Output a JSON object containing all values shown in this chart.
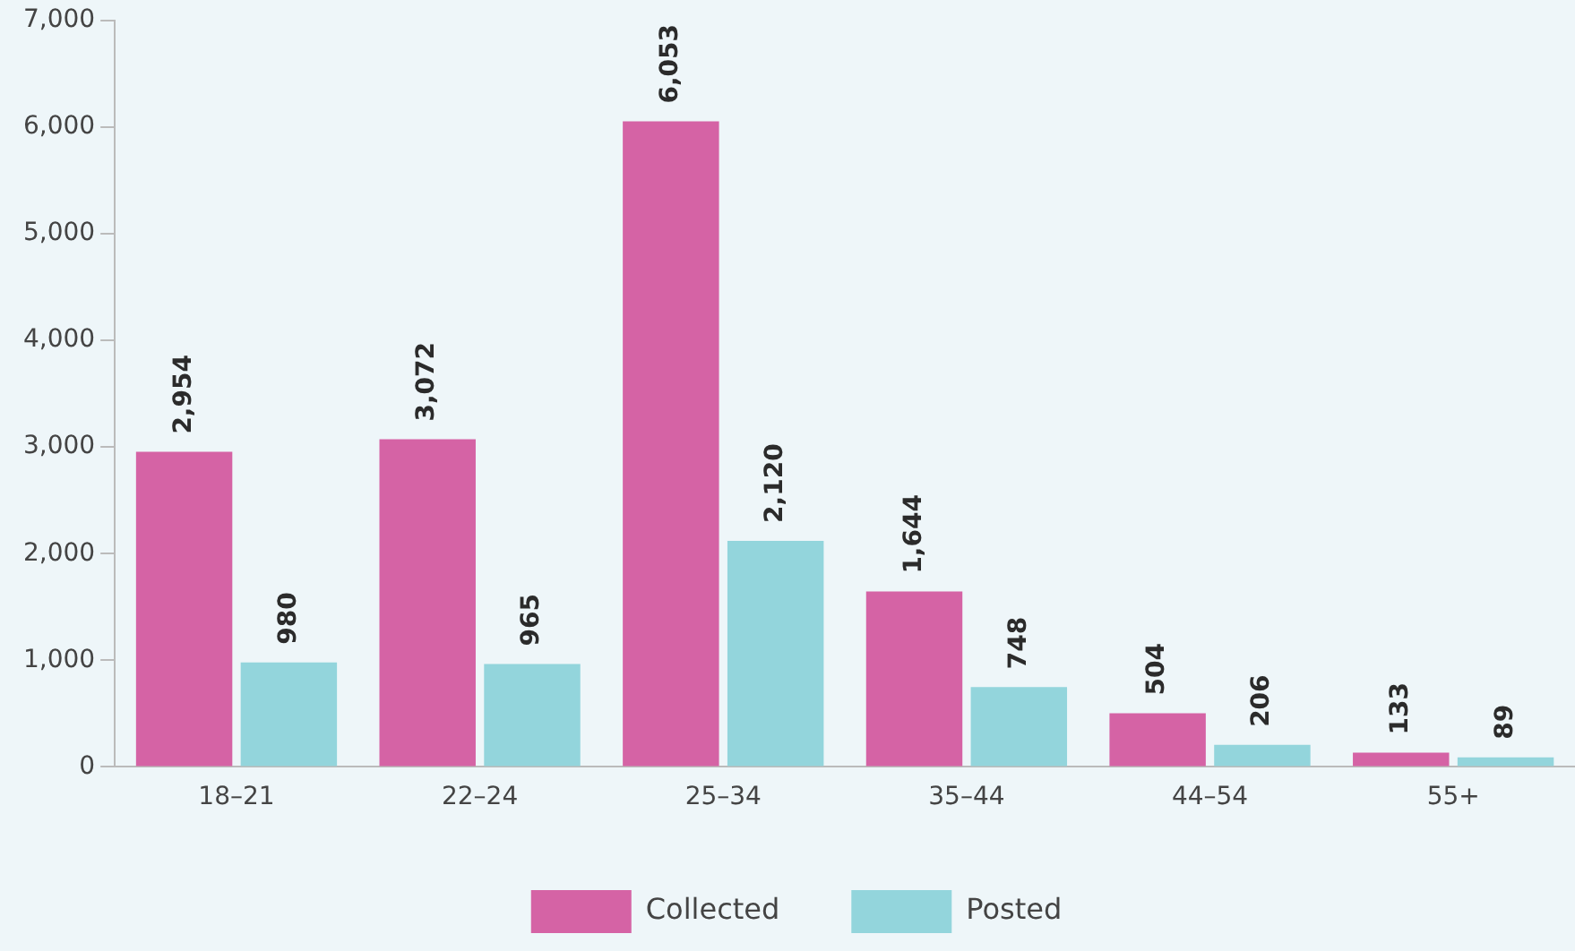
{
  "chart_data": {
    "type": "bar",
    "categories": [
      "18–21",
      "22–24",
      "25–34",
      "35–44",
      "44–54",
      "55+"
    ],
    "series": [
      {
        "name": "Collected",
        "color": "#d563a5",
        "values": [
          2954,
          3072,
          6053,
          1644,
          504,
          133
        ],
        "value_labels": [
          "2,954",
          "3,072",
          "6,053",
          "1,644",
          "504",
          "133"
        ]
      },
      {
        "name": "Posted",
        "color": "#93d5dc",
        "values": [
          980,
          965,
          2120,
          748,
          206,
          89
        ],
        "value_labels": [
          "980",
          "965",
          "2,120",
          "748",
          "206",
          "89"
        ]
      }
    ],
    "ylim": [
      0,
      7000
    ],
    "yticks": [
      {
        "value": 0,
        "label": "0"
      },
      {
        "value": 1000,
        "label": "1,000"
      },
      {
        "value": 2000,
        "label": "2,000"
      },
      {
        "value": 3000,
        "label": "3,000"
      },
      {
        "value": 4000,
        "label": "4,000"
      },
      {
        "value": 5000,
        "label": "5,000"
      },
      {
        "value": 6000,
        "label": "6,000"
      },
      {
        "value": 7000,
        "label": "7,000"
      }
    ],
    "legend": "bottom"
  }
}
